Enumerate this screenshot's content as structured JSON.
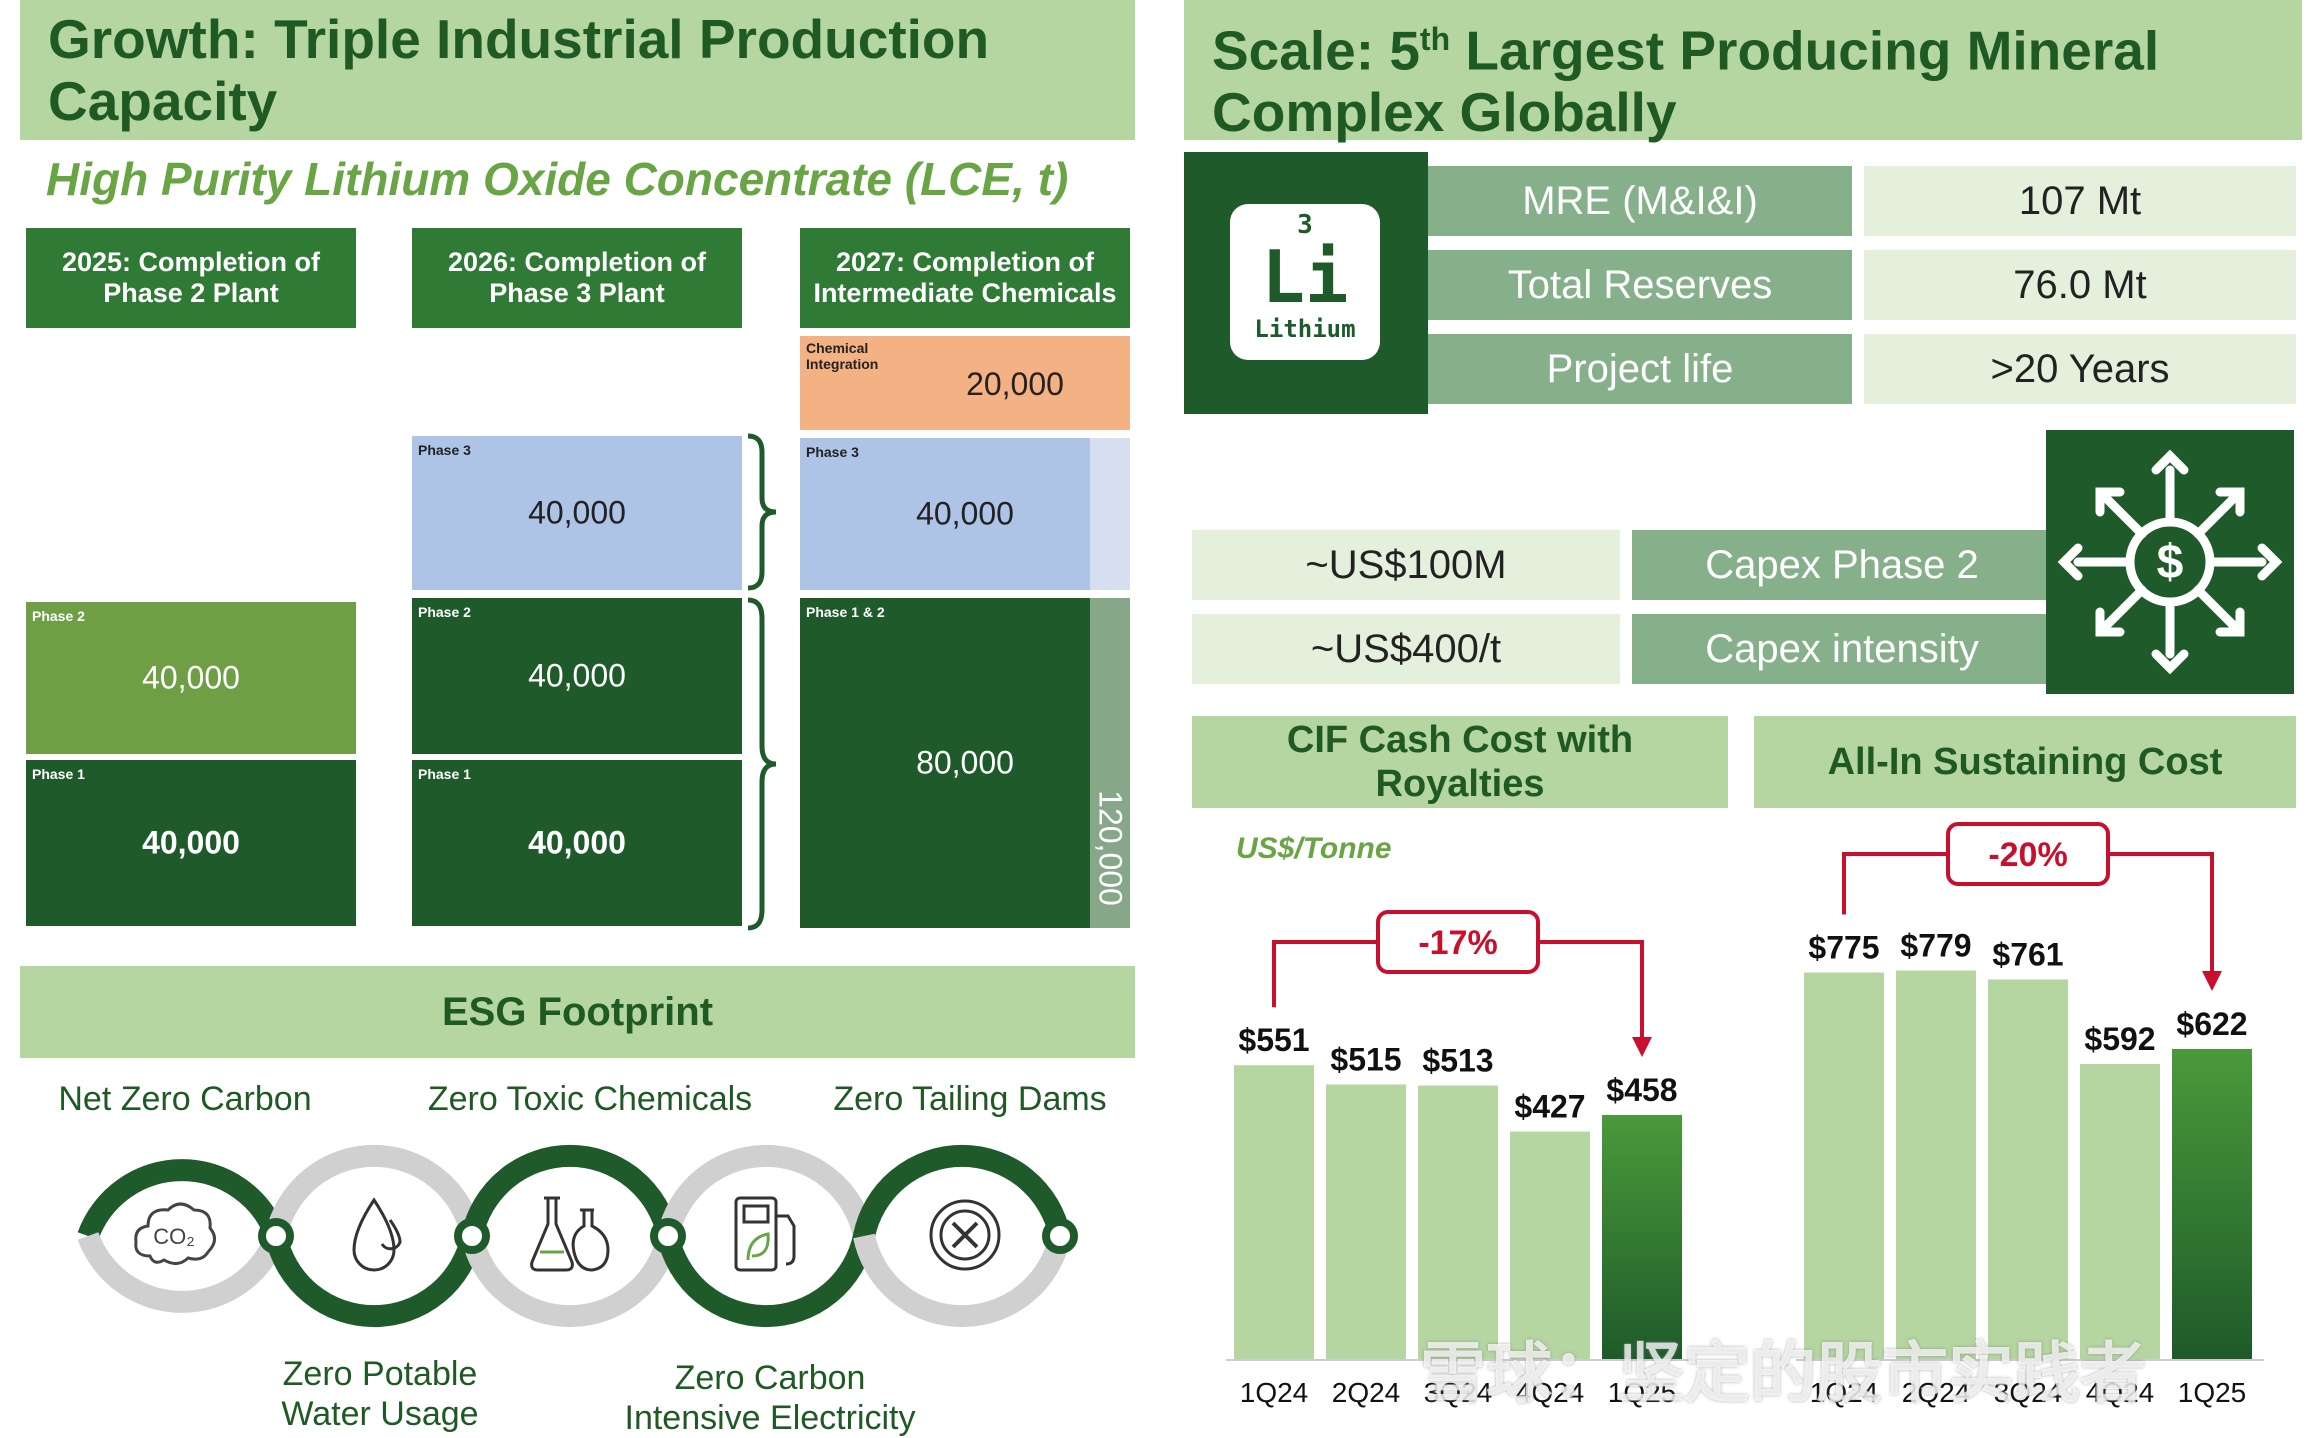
{
  "growth": {
    "title_line1": "Growth: Triple Industrial Production",
    "title_line2": "Capacity",
    "subtitle": "High Purity Lithium Oxide Concentrate (LCE, t)",
    "columns": [
      {
        "title": "2025: Completion of Phase 2 Plant"
      },
      {
        "title": "2026: Completion of Phase 3 Plant"
      },
      {
        "title": "2027: Completion of Intermediate Chemicals"
      }
    ],
    "col1": {
      "phase2_label": "Phase 2",
      "phase2_value": "40,000",
      "phase1_label": "Phase 1",
      "phase1_value": "40,000"
    },
    "col2": {
      "phase3_label": "Phase 3",
      "phase3_value": "40,000",
      "phase2_label": "Phase 2",
      "phase2_value": "40,000",
      "phase1_label": "Phase 1",
      "phase1_value": "40,000"
    },
    "col3": {
      "chem_label": "Chemical Integration",
      "chem_value": "20,000",
      "phase3_label": "Phase 3",
      "phase3_value": "40,000",
      "phase12_label": "Phase 1 & 2",
      "phase12_value": "80,000",
      "total_value": "120,000"
    }
  },
  "esg": {
    "title": "ESG Footprint",
    "items_top": [
      "Net Zero Carbon",
      "Zero Toxic Chemicals",
      "Zero Tailing Dams"
    ],
    "items_bottom": [
      {
        "line1": "Zero Potable",
        "line2": "Water Usage"
      },
      {
        "line1": "Zero Carbon",
        "line2": "Intensive Electricity"
      }
    ],
    "icons": [
      "co2-cloud-icon",
      "water-drop-icon",
      "chemical-flask-icon",
      "electric-fuel-pump-icon",
      "no-dam-icon"
    ]
  },
  "scale": {
    "title_pre": "Scale: 5",
    "title_sup": "th",
    "title_post": " Largest Producing Mineral",
    "title_line2": "Complex Globally",
    "element": {
      "number": "3",
      "symbol": "Li",
      "name": "Lithium"
    },
    "stats": [
      {
        "label": "MRE (M&I&I)",
        "value": "107 Mt"
      },
      {
        "label": "Total Reserves",
        "value": "76.0 Mt"
      },
      {
        "label": "Project life",
        "value": ">20 Years"
      }
    ],
    "capex": [
      {
        "value": "~US$100M",
        "label": "Capex Phase 2"
      },
      {
        "value": "~US$400/t",
        "label": "Capex intensity"
      }
    ],
    "capex_icon": "dollar-network-icon"
  },
  "cif": {
    "title_line1": "CIF Cash Cost with",
    "title_line2": "Royalties",
    "unit": "US$/Tonne",
    "change": "-17%"
  },
  "aisc": {
    "title": "All-In Sustaining Cost",
    "change": "-20%"
  },
  "chart_data": [
    {
      "type": "bar",
      "title": "CIF Cash Cost with Royalties",
      "ylabel": "US$/Tonne",
      "categories": [
        "1Q24",
        "2Q24",
        "3Q24",
        "4Q24",
        "1Q25"
      ],
      "values": [
        551,
        515,
        513,
        427,
        458
      ],
      "labels": [
        "$551",
        "$515",
        "$513",
        "$427",
        "$458"
      ],
      "annotation": "-17%",
      "colors": {
        "bar": "#b5d6a0",
        "highlight": "#4a9a3a"
      }
    },
    {
      "type": "bar",
      "title": "All-In Sustaining Cost",
      "categories": [
        "1Q24",
        "2Q24",
        "3Q24",
        "4Q24",
        "1Q25"
      ],
      "values": [
        775,
        779,
        761,
        592,
        622
      ],
      "labels": [
        "$775",
        "$779",
        "$761",
        "$592",
        "$622"
      ],
      "annotation": "-20%",
      "colors": {
        "bar": "#b5d6a0",
        "highlight": "#4a9a3a"
      }
    }
  ],
  "watermark": "雪球：坚定的股市实践者"
}
